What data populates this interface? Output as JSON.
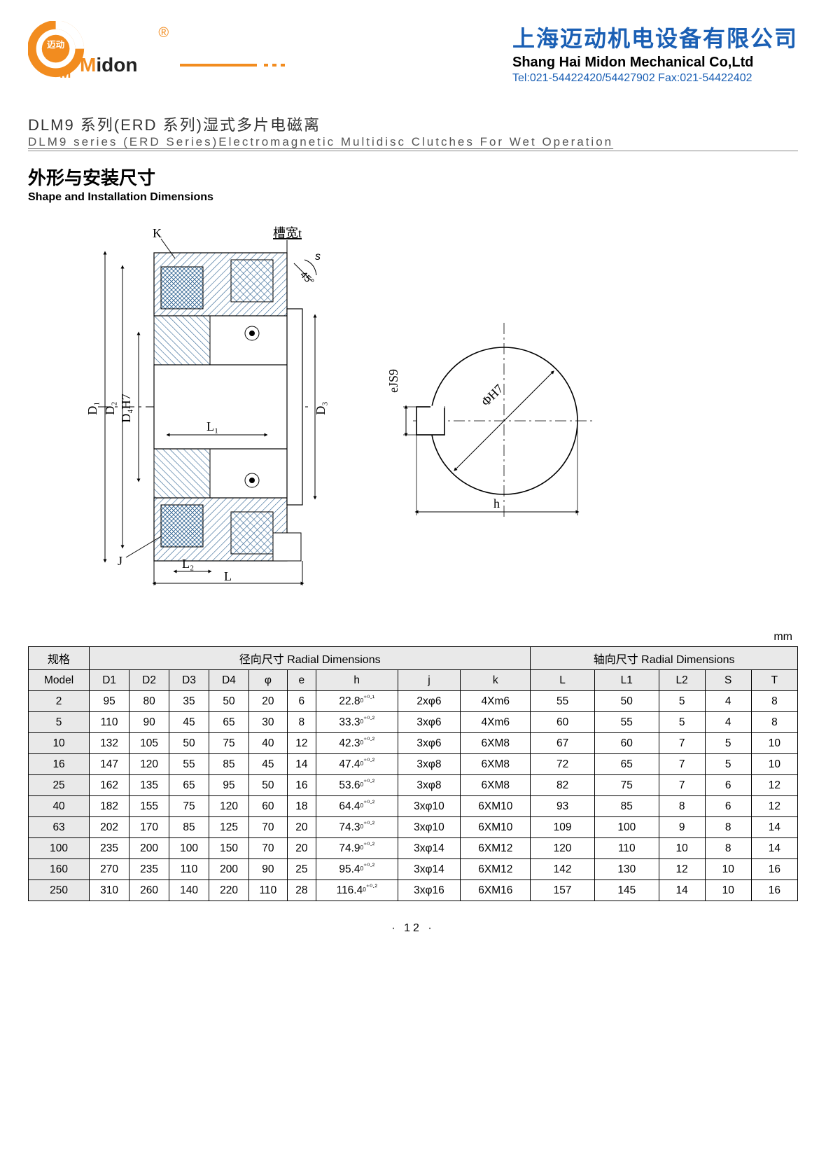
{
  "header": {
    "logo_text_top": "迈动",
    "logo_text_bottom": "Midon",
    "reg_mark": "®",
    "company_cn": "上海迈动机电设备有限公司",
    "company_en": "Shang Hai Midon Mechanical Co,Ltd",
    "company_tel": "Tel:021-54422420/54427902 Fax:021-54422402"
  },
  "title": {
    "cn": "DLM9 系列(ERD 系列)湿式多片电磁离",
    "en": "DLM9 series (ERD Series)Electromagnetic Multidisc Clutches For Wet Operation"
  },
  "subtitle": {
    "cn": "外形与安装尺寸",
    "en": "Shape and Installation Dimensions"
  },
  "diagram_labels": {
    "K": "K",
    "J": "J",
    "L": "L",
    "L1": "L₁",
    "L2": "L₂",
    "D1": "D₁",
    "D2": "D₂",
    "D3": "D₃",
    "D4H7": "D₄H7",
    "slot_t": "槽宽t",
    "s": "s",
    "angle": "45°",
    "eJS9": "eJS9",
    "phiH7": "ΦH7",
    "h": "h"
  },
  "unit": "mm",
  "table": {
    "hdr_model_cn": "规格",
    "hdr_model_en": "Model",
    "hdr_radial": "径向尺寸 Radial Dimensions",
    "hdr_axial": "轴向尺寸 Radial Dimensions",
    "cols": [
      "D1",
      "D2",
      "D3",
      "D4",
      "φ",
      "e",
      "h",
      "j",
      "k",
      "L",
      "L1",
      "L2",
      "S",
      "T"
    ],
    "rows": [
      {
        "m": "2",
        "d": [
          "95",
          "80",
          "35",
          "50",
          "20",
          "6",
          "22.8₀⁺⁰·¹",
          "2xφ6",
          "4Xm6",
          "55",
          "50",
          "5",
          "4",
          "8"
        ]
      },
      {
        "m": "5",
        "d": [
          "110",
          "90",
          "45",
          "65",
          "30",
          "8",
          "33.3₀⁺⁰·²",
          "3xφ6",
          "4Xm6",
          "60",
          "55",
          "5",
          "4",
          "8"
        ]
      },
      {
        "m": "10",
        "d": [
          "132",
          "105",
          "50",
          "75",
          "40",
          "12",
          "42.3₀⁺⁰·²",
          "3xφ6",
          "6XM8",
          "67",
          "60",
          "7",
          "5",
          "10"
        ]
      },
      {
        "m": "16",
        "d": [
          "147",
          "120",
          "55",
          "85",
          "45",
          "14",
          "47.4₀⁺⁰·²",
          "3xφ8",
          "6XM8",
          "72",
          "65",
          "7",
          "5",
          "10"
        ]
      },
      {
        "m": "25",
        "d": [
          "162",
          "135",
          "65",
          "95",
          "50",
          "16",
          "53.6₀⁺⁰·²",
          "3xφ8",
          "6XM8",
          "82",
          "75",
          "7",
          "6",
          "12"
        ]
      },
      {
        "m": "40",
        "d": [
          "182",
          "155",
          "75",
          "120",
          "60",
          "18",
          "64.4₀⁺⁰·²",
          "3xφ10",
          "6XM10",
          "93",
          "85",
          "8",
          "6",
          "12"
        ]
      },
      {
        "m": "63",
        "d": [
          "202",
          "170",
          "85",
          "125",
          "70",
          "20",
          "74.3₀⁺⁰·²",
          "3xφ10",
          "6XM10",
          "109",
          "100",
          "9",
          "8",
          "14"
        ]
      },
      {
        "m": "100",
        "d": [
          "235",
          "200",
          "100",
          "150",
          "70",
          "20",
          "74.9₀⁺⁰·²",
          "3xφ14",
          "6XM12",
          "120",
          "110",
          "10",
          "8",
          "14"
        ]
      },
      {
        "m": "160",
        "d": [
          "270",
          "235",
          "110",
          "200",
          "90",
          "25",
          "95.4₀⁺⁰·²",
          "3xφ14",
          "6XM12",
          "142",
          "130",
          "12",
          "10",
          "16"
        ]
      },
      {
        "m": "250",
        "d": [
          "310",
          "260",
          "140",
          "220",
          "110",
          "28",
          "116.4₀⁺⁰·²",
          "3xφ16",
          "6XM16",
          "157",
          "145",
          "14",
          "10",
          "16"
        ]
      }
    ]
  },
  "pagenum": "· 12 ·",
  "colors": {
    "orange": "#f28c1f",
    "blue": "#1a5fb4",
    "grey_bg": "#e9e9e9",
    "border": "#000000",
    "hatch": "#2a5f8f"
  }
}
